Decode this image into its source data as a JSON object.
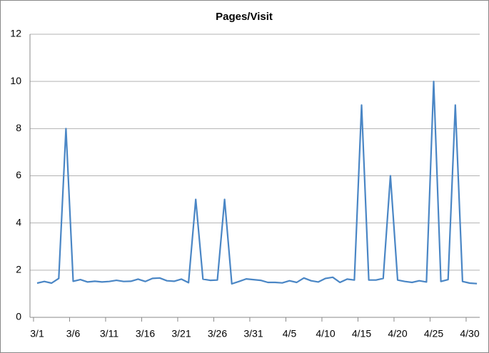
{
  "chart_data": {
    "type": "line",
    "title": "Pages/Visit",
    "categories": [
      "3/1",
      null,
      null,
      null,
      null,
      "3/6",
      null,
      null,
      null,
      null,
      "3/11",
      null,
      null,
      null,
      null,
      "3/16",
      null,
      null,
      null,
      null,
      "3/21",
      null,
      null,
      null,
      null,
      "3/26",
      null,
      null,
      null,
      null,
      "3/31",
      null,
      null,
      null,
      null,
      "4/5",
      null,
      null,
      null,
      null,
      "4/10",
      null,
      null,
      null,
      null,
      "4/15",
      null,
      null,
      null,
      null,
      "4/20",
      null,
      null,
      null,
      null,
      "4/25",
      null,
      null,
      null,
      null,
      "4/30",
      null
    ],
    "values": [
      1.45,
      1.52,
      1.45,
      1.65,
      8,
      1.53,
      1.6,
      1.5,
      1.53,
      1.5,
      1.52,
      1.57,
      1.52,
      1.53,
      1.62,
      1.52,
      1.65,
      1.67,
      1.55,
      1.53,
      1.62,
      1.47,
      5,
      1.62,
      1.57,
      1.58,
      5,
      1.42,
      1.52,
      1.63,
      1.6,
      1.57,
      1.48,
      1.48,
      1.46,
      1.55,
      1.48,
      1.67,
      1.55,
      1.5,
      1.65,
      1.7,
      1.48,
      1.62,
      1.58,
      9,
      1.58,
      1.58,
      1.65,
      6,
      1.58,
      1.52,
      1.48,
      1.55,
      1.5,
      10,
      1.52,
      1.6,
      9,
      1.52,
      1.45,
      1.43
    ],
    "color": "#4a86c5",
    "ylim": [
      0,
      12
    ],
    "yticks": [
      0,
      2,
      4,
      6,
      8,
      10,
      12
    ],
    "grid": true
  }
}
